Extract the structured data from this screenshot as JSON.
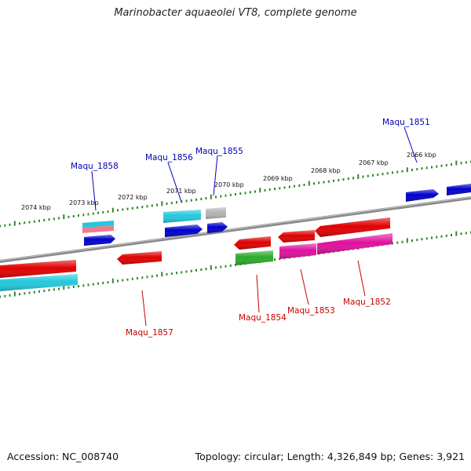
{
  "title": "Marinobacter aquaeolei VT8, complete genome",
  "footer": {
    "accession": "Accession: NC_008740",
    "topology": "Topology: circular; Length: 4,326,849 bp; Genes: 3,921"
  },
  "colors": {
    "backbone": "#8a8a8a",
    "tick": "#2a8a2a",
    "label_top": "#0000b4",
    "label_bottom": "#c80000",
    "gene_red": "#e00000",
    "gene_blue": "#0000cc",
    "gene_cyan": "#22c8dc",
    "gene_magenta": "#e0109e",
    "gene_green": "#2caa2c",
    "gene_grey": "#b4b4b4",
    "gene_pink": "#f07a90"
  },
  "scale_ticks": [
    {
      "label": "2074 kbp"
    },
    {
      "label": "2073 kbp"
    },
    {
      "label": "2072 kbp"
    },
    {
      "label": "2071 kbp"
    },
    {
      "label": "2070 kbp"
    },
    {
      "label": "2069 kbp"
    },
    {
      "label": "2068 kbp"
    },
    {
      "label": "2067 kbp"
    },
    {
      "label": "2066 kbp"
    }
  ],
  "gene_labels": {
    "top": [
      "Maqu_1858",
      "Maqu_1856",
      "Maqu_1855",
      "Maqu_1851"
    ],
    "bottom": [
      "Maqu_1857",
      "Maqu_1854",
      "Maqu_1853",
      "Maqu_1852"
    ]
  }
}
